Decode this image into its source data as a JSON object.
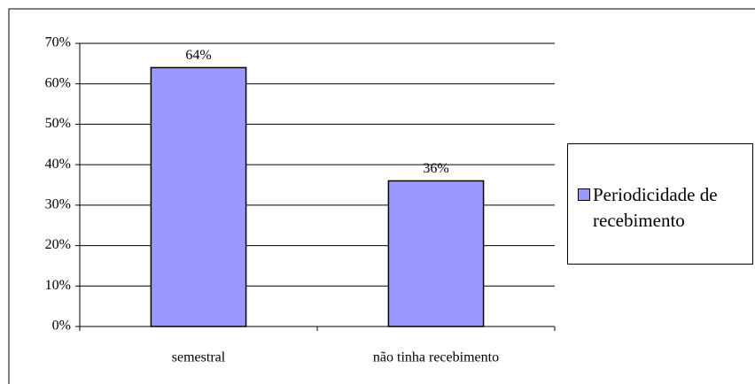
{
  "chart_data": {
    "type": "bar",
    "categories": [
      "semestral",
      "não tinha recebimento"
    ],
    "series": [
      {
        "name": "Periodicidade de recebimento",
        "color": "#9999ff",
        "values": [
          64,
          36
        ],
        "value_labels": [
          "64%",
          "36%"
        ]
      }
    ],
    "ylim": [
      0,
      70
    ],
    "yticks": [
      {
        "value": 0,
        "label": "0%"
      },
      {
        "value": 10,
        "label": "10%"
      },
      {
        "value": 20,
        "label": "20%"
      },
      {
        "value": 30,
        "label": "30%"
      },
      {
        "value": 40,
        "label": "40%"
      },
      {
        "value": 50,
        "label": "50%"
      },
      {
        "value": 60,
        "label": "60%"
      },
      {
        "value": 70,
        "label": "70%"
      }
    ],
    "grid": true,
    "legend": "right"
  }
}
